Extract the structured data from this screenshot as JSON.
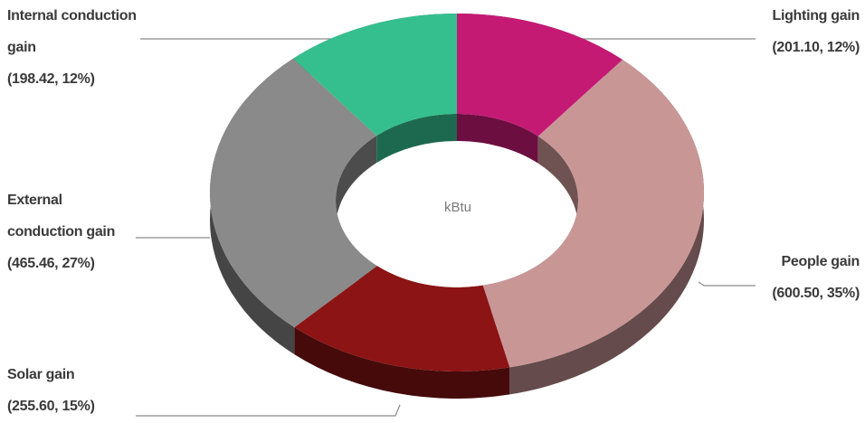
{
  "chart_data": {
    "type": "donut",
    "center_label": "kBtu",
    "categories": [
      "Lighting gain",
      "People gain",
      "Solar gain",
      "External conduction gain",
      "Internal conduction gain"
    ],
    "values": [
      201.1,
      600.5,
      255.6,
      465.46,
      198.42
    ],
    "value_labels": [
      "(201.10, 12%)",
      "(600.50, 35%)",
      "(255.60, 15%)",
      "(465.46, 27%)",
      "(198.42, 12%)"
    ],
    "colors": [
      "#c41a74",
      "#c99696",
      "#8c1414",
      "#8a8a8a",
      "#35bf8f"
    ]
  }
}
